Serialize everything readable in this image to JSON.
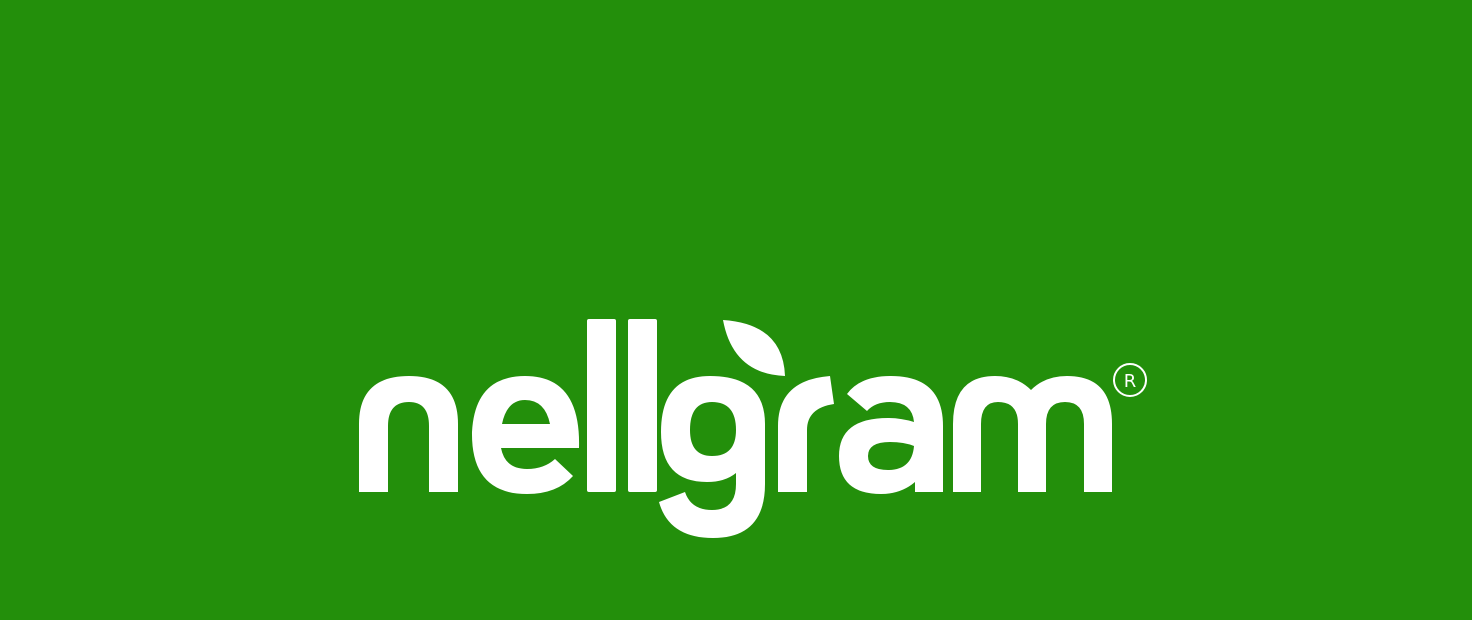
{
  "brand": {
    "name": "nellgram",
    "trademark_symbol": "R",
    "logo_color": "#FFFFFF",
    "background_color": "#238F0B",
    "icon": "leaf-icon"
  }
}
